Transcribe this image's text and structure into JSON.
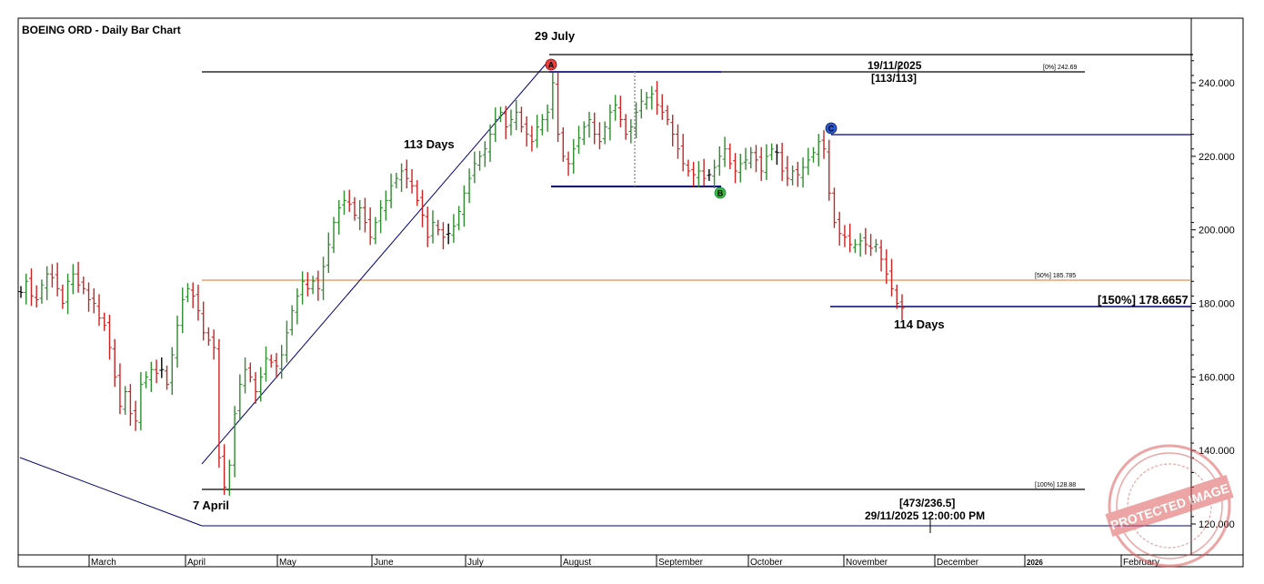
{
  "chart_data": {
    "type": "ohlc_bar",
    "title": "BOEING ORD - Daily Bar Chart",
    "y_ticks": [
      "240.000",
      "220.000",
      "200.000",
      "180.000",
      "160.000",
      "140.000",
      "120.000"
    ],
    "ylim": [
      115,
      252
    ],
    "x_labels": [
      "March",
      "April",
      "May",
      "June",
      "July",
      "August",
      "September",
      "October",
      "November",
      "December",
      "2026",
      "February"
    ],
    "colors": {
      "up": "#2e8b2e",
      "down": "#cc2222",
      "flat": "#000000",
      "trend": "#00007a",
      "fib50": "#e07020",
      "grid": "#000000"
    },
    "levels": [
      {
        "label": "[0%] 242.69",
        "value": 242.69
      },
      {
        "label": "[50%] 185.785",
        "value": 185.785
      },
      {
        "label": "[100%] 128.88",
        "value": 128.88
      },
      {
        "label": "[150%] 178.6657",
        "value": 178.6657
      }
    ],
    "annotations": {
      "peak_date": "29 July",
      "low_date": "7 April",
      "days_up": "113 Days",
      "days_down": "114 Days",
      "target_date": "19/11/2025",
      "target_ratio": "[113/113]",
      "cycle_ratio": "[473/236.5]",
      "cycle_date": "29/11/2025 12:00:00 PM"
    },
    "pivots": [
      {
        "label": "A",
        "value": 242.69,
        "color": "#e84040"
      },
      {
        "label": "B",
        "value": 211.0,
        "color": "#3cb83c"
      },
      {
        "label": "C",
        "value": 226.0,
        "color": "#2a5ad8"
      }
    ],
    "closes": [
      183,
      186,
      182,
      181,
      185,
      188,
      187,
      184,
      180,
      186,
      188,
      185,
      184,
      181,
      180,
      176,
      174,
      168,
      160,
      152,
      156,
      150,
      148,
      158,
      160,
      162,
      161,
      162,
      158,
      166,
      174,
      181,
      184,
      182,
      178,
      172,
      170,
      168,
      138,
      130,
      136,
      150,
      158,
      162,
      160,
      156,
      160,
      165,
      164,
      163,
      166,
      172,
      178,
      182,
      186,
      184,
      186,
      184,
      190,
      196,
      202,
      206,
      208,
      207,
      204,
      206,
      202,
      198,
      202,
      206,
      208,
      212,
      214,
      216,
      214,
      212,
      208,
      204,
      198,
      202,
      200,
      198,
      199,
      201,
      205,
      210,
      214,
      218,
      220,
      222,
      226,
      230,
      232,
      228,
      230,
      232,
      228,
      226,
      224,
      228,
      230,
      232,
      240,
      226,
      220,
      218,
      222,
      225,
      228,
      230,
      226,
      224,
      228,
      232,
      234,
      230,
      226,
      228,
      232,
      235,
      236,
      237,
      234,
      232,
      230,
      226,
      222,
      218,
      216,
      215,
      216,
      214,
      215,
      217,
      220,
      222,
      218,
      216,
      218,
      219,
      221,
      219,
      216,
      220,
      222,
      221,
      216,
      214,
      216,
      215,
      217,
      219,
      221,
      224,
      222,
      210,
      202,
      199,
      198,
      196,
      196,
      197,
      196,
      195,
      196,
      192,
      188,
      184,
      180,
      178.7
    ]
  }
}
